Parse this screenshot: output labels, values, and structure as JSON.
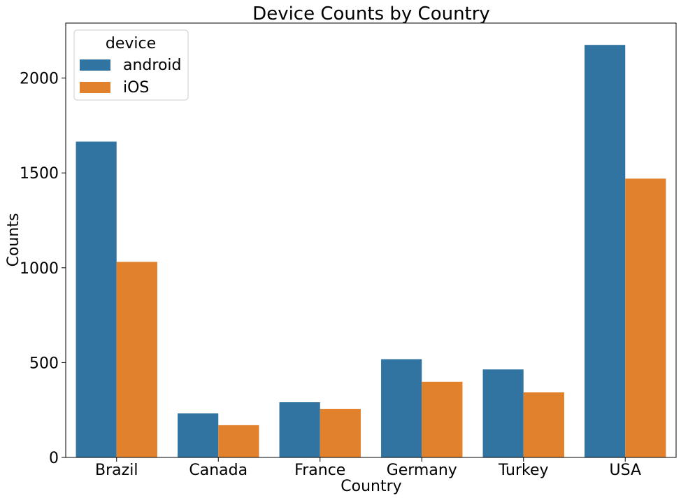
{
  "chart_data": {
    "type": "bar",
    "title": "Device Counts by Country",
    "xlabel": "Country",
    "ylabel": "Counts",
    "categories": [
      "Brazil",
      "Canada",
      "France",
      "Germany",
      "Turkey",
      "USA"
    ],
    "series": [
      {
        "name": "android",
        "color": "#3274a1",
        "values": [
          1665,
          232,
          291,
          518,
          464,
          2175
        ]
      },
      {
        "name": "iOS",
        "color": "#e1812c",
        "values": [
          1031,
          170,
          255,
          399,
          343,
          1470
        ]
      }
    ],
    "ylim": [
      0,
      2290
    ],
    "yticks": [
      0,
      500,
      1000,
      1500,
      2000
    ],
    "grid": false,
    "legend": {
      "title": "device",
      "placement": "upper-left"
    }
  }
}
